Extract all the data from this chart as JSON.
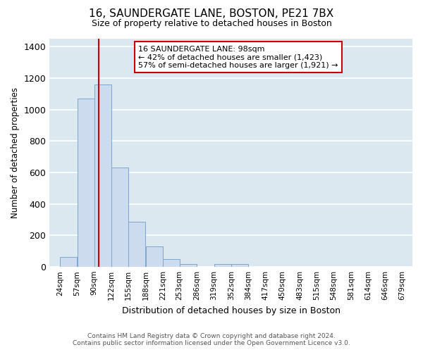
{
  "title": "16, SAUNDERGATE LANE, BOSTON, PE21 7BX",
  "subtitle": "Size of property relative to detached houses in Boston",
  "xlabel": "Distribution of detached houses by size in Boston",
  "ylabel": "Number of detached properties",
  "bar_color": "#ccdcee",
  "bar_edge_color": "#7aa8cc",
  "bg_color": "#dce8f0",
  "grid_color": "#ffffff",
  "fig_bg_color": "#ffffff",
  "annotation_box_color": "#ffffff",
  "annotation_box_edge": "#cc0000",
  "vline_color": "#cc0000",
  "vline_x": 98,
  "bin_edges": [
    24,
    57,
    90,
    122,
    155,
    188,
    221,
    253,
    286,
    319,
    352,
    384,
    417,
    450,
    483,
    515,
    548,
    581,
    614,
    646,
    679
  ],
  "bar_heights": [
    65,
    1070,
    1160,
    630,
    285,
    130,
    48,
    20,
    0,
    18,
    18,
    0,
    0,
    0,
    0,
    0,
    0,
    0,
    0,
    0
  ],
  "tick_labels": [
    "24sqm",
    "57sqm",
    "90sqm",
    "122sqm",
    "155sqm",
    "188sqm",
    "221sqm",
    "253sqm",
    "286sqm",
    "319sqm",
    "352sqm",
    "384sqm",
    "417sqm",
    "450sqm",
    "483sqm",
    "515sqm",
    "548sqm",
    "581sqm",
    "614sqm",
    "646sqm",
    "679sqm"
  ],
  "ylim": [
    0,
    1450
  ],
  "yticks": [
    0,
    200,
    400,
    600,
    800,
    1000,
    1200,
    1400
  ],
  "annotation_line1": "16 SAUNDERGATE LANE: 98sqm",
  "annotation_line2": "← 42% of detached houses are smaller (1,423)",
  "annotation_line3": "57% of semi-detached houses are larger (1,921) →",
  "footer1": "Contains HM Land Registry data © Crown copyright and database right 2024.",
  "footer2": "Contains public sector information licensed under the Open Government Licence v3.0."
}
